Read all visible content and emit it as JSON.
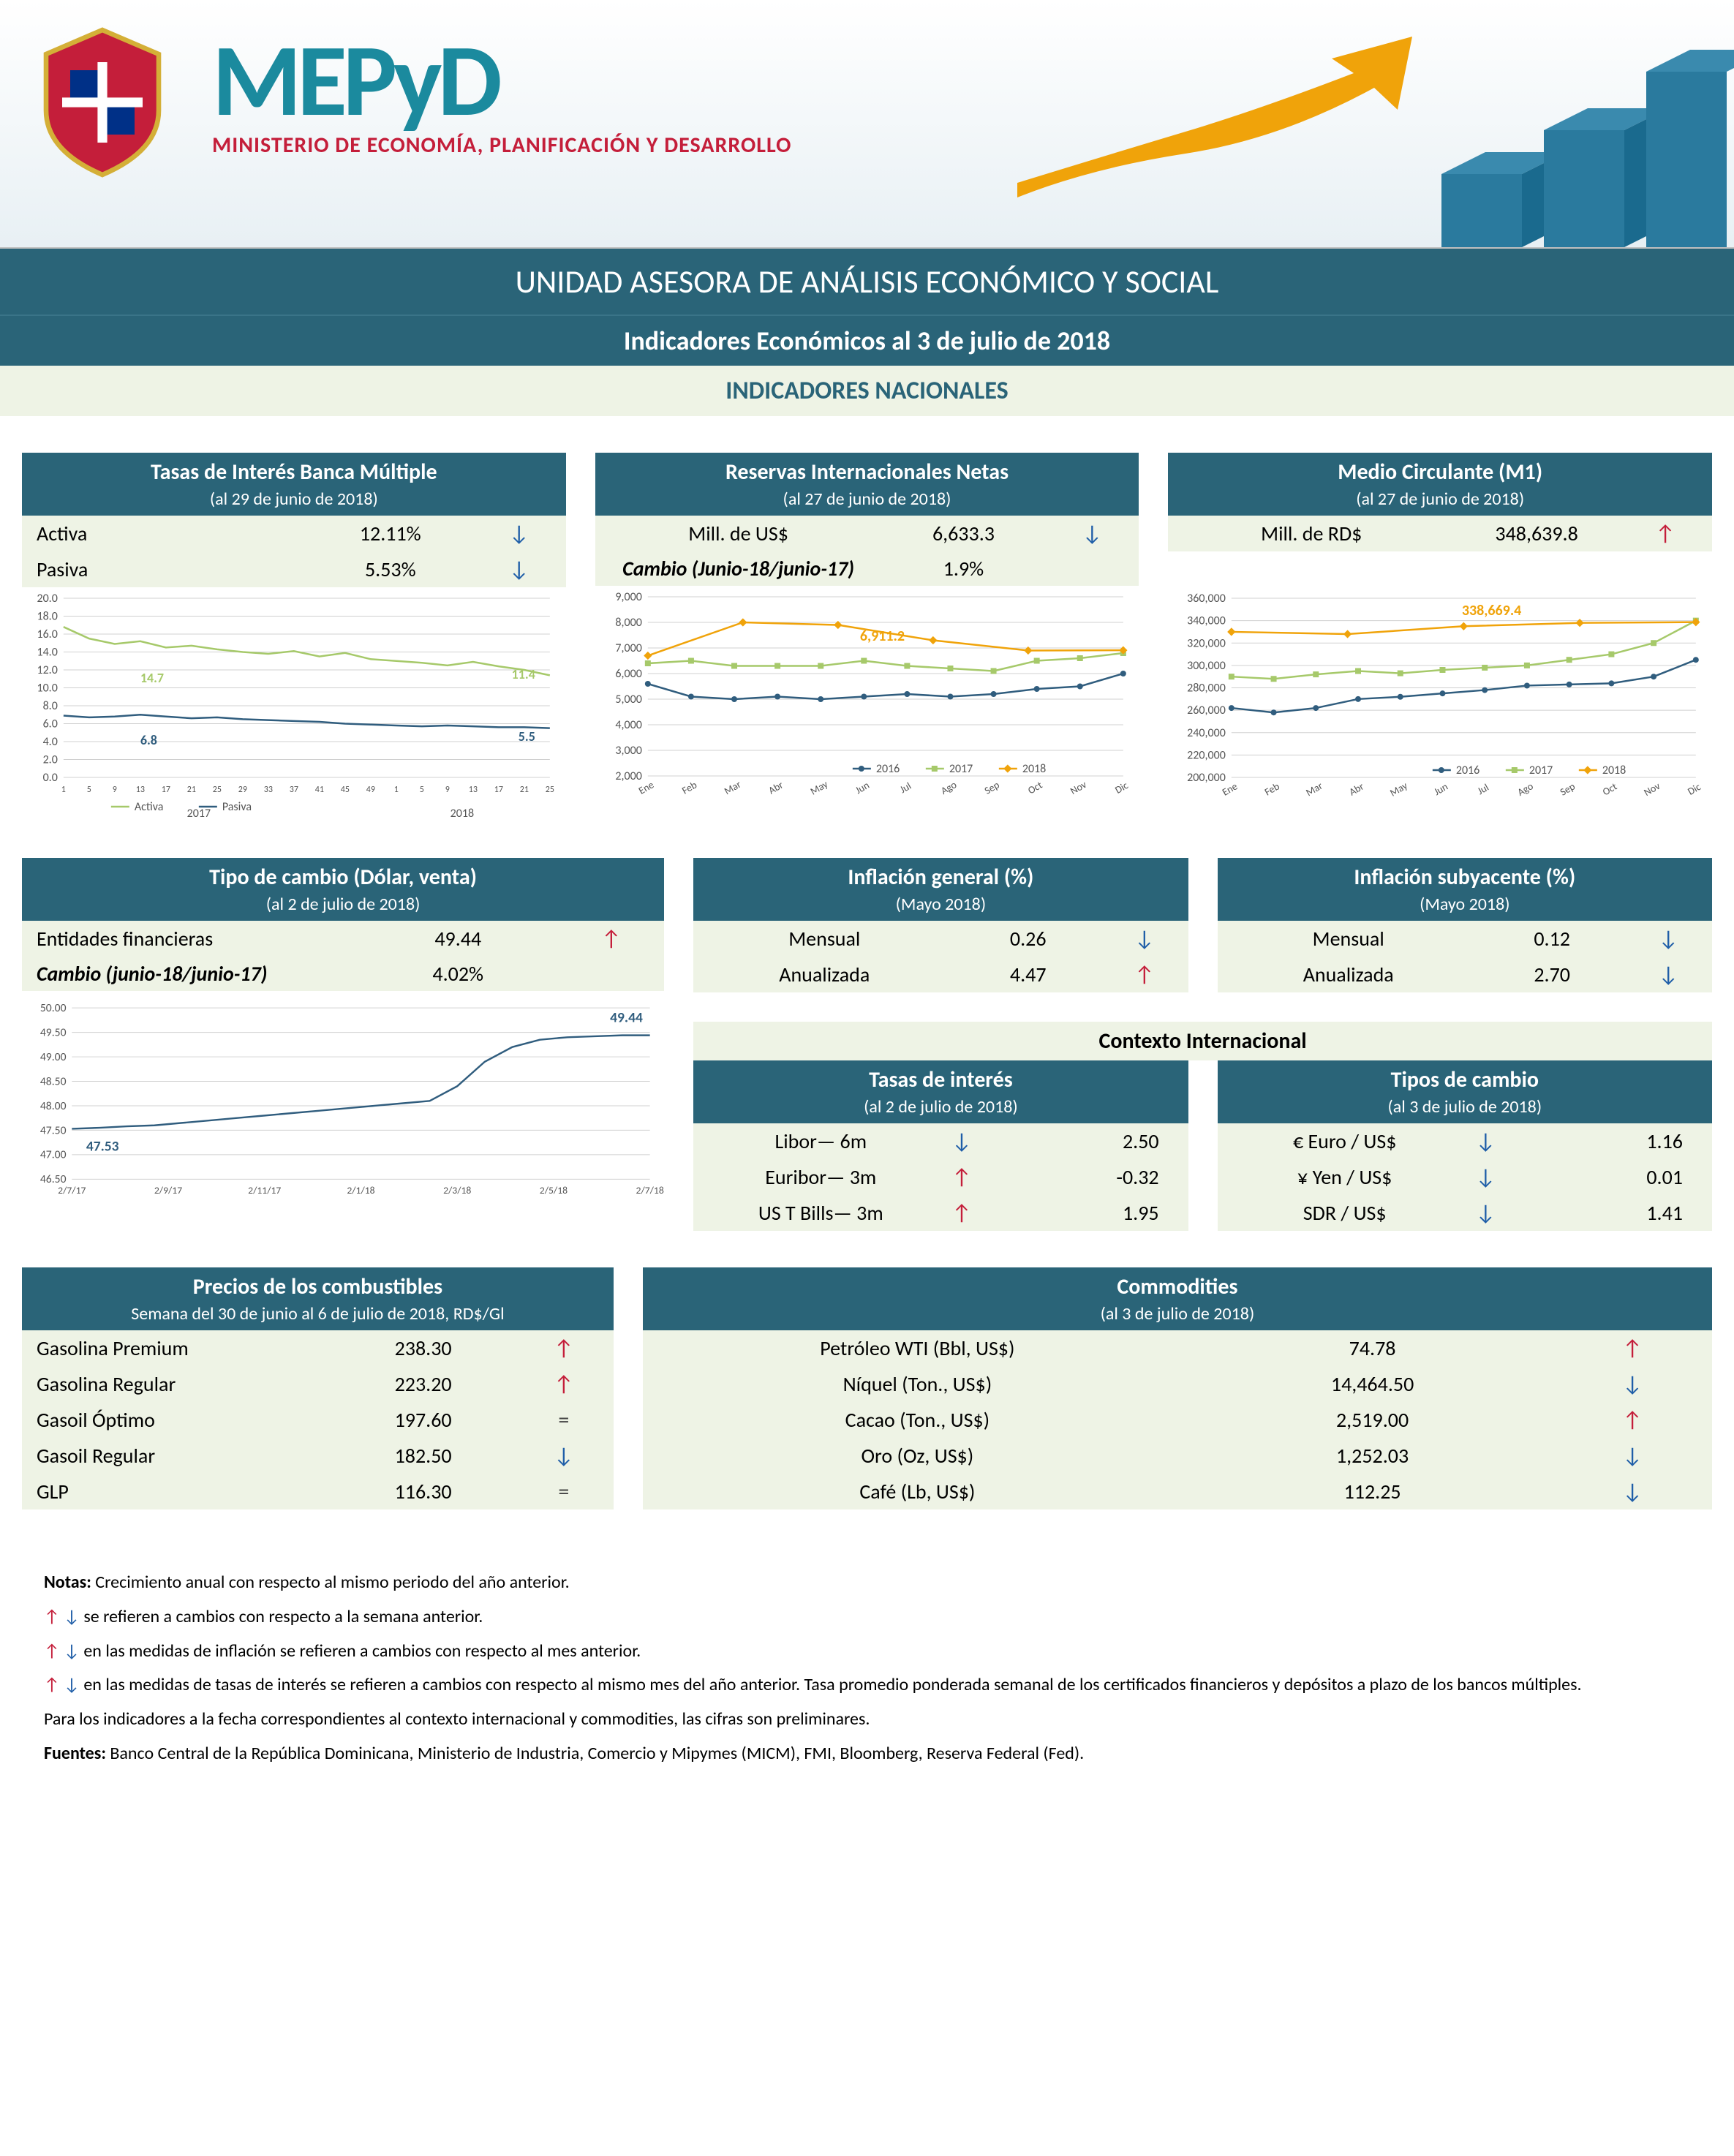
{
  "header": {
    "acronym": "MEPyD",
    "ministry": "MINISTERIO DE ECONOMÍA, PLANIFICACIÓN Y DESARROLLO",
    "title": "UNIDAD ASESORA DE ANÁLISIS ECONÓMICO Y SOCIAL",
    "subtitle": "Indicadores Económicos al  3 de julio de 2018",
    "section": "INDICADORES NACIONALES"
  },
  "colors": {
    "teal": "#2a6478",
    "cream": "#eef3e5",
    "up": "#c41e3a",
    "down": "#1f5ea8",
    "series_2016": "#305d7e",
    "series_2017": "#a6c96a",
    "series_2018": "#f0a30a",
    "activa": "#a6c96a",
    "pasiva": "#305d7e",
    "fx_line": "#305d7e",
    "grid": "#d0d0d0"
  },
  "tasas_interes": {
    "title": "Tasas de Interés Banca Múltiple",
    "date": "(al 29 de junio de 2018)",
    "rows": [
      {
        "label": "Activa",
        "value": "12.11%",
        "arrow": "down"
      },
      {
        "label": "Pasiva",
        "value": "5.53%",
        "arrow": "down"
      }
    ],
    "chart": {
      "ylim": [
        0,
        20
      ],
      "ytick_step": 2,
      "x_years": [
        "2017",
        "2018"
      ],
      "x_ticks": [
        "1",
        "5",
        "9",
        "13",
        "17",
        "21",
        "25",
        "29",
        "33",
        "37",
        "41",
        "45",
        "49",
        "1",
        "5",
        "9",
        "13",
        "17",
        "21",
        "25"
      ],
      "legend": [
        "Activa",
        "Pasiva"
      ],
      "activa_last_label": "11.4",
      "activa_mid_label": "14.7",
      "pasiva_last_label": "5.5",
      "pasiva_mid_label": "6.8",
      "activa": [
        16.8,
        15.5,
        14.9,
        15.2,
        14.5,
        14.7,
        14.3,
        14.0,
        13.8,
        14.1,
        13.5,
        13.9,
        13.2,
        13.0,
        12.8,
        12.5,
        12.9,
        12.4,
        12.0,
        11.4
      ],
      "pasiva": [
        6.9,
        6.7,
        6.8,
        7.0,
        6.8,
        6.6,
        6.7,
        6.5,
        6.4,
        6.3,
        6.2,
        6.0,
        5.9,
        5.8,
        5.7,
        5.8,
        5.7,
        5.6,
        5.6,
        5.5
      ]
    }
  },
  "reservas": {
    "title": "Reservas Internacionales Netas",
    "date": "(al 27 de junio de 2018)",
    "rows": [
      {
        "label": "Mill. de US$",
        "value": "6,633.3",
        "arrow": "down"
      },
      {
        "label": "Cambio (Junio-18/junio-17)",
        "value": "1.9%",
        "arrow": "",
        "italic": true
      }
    ],
    "chart": {
      "ylim": [
        2000,
        9000
      ],
      "ytick_step": 1000,
      "months": [
        "Ene",
        "Feb",
        "Mar",
        "Abr",
        "May",
        "Jun",
        "Jul",
        "Ago",
        "Sep",
        "Oct",
        "Nov",
        "Dic"
      ],
      "legend": [
        "2016",
        "2017",
        "2018"
      ],
      "label_2018": "6,911.2",
      "s2016": [
        5600,
        5100,
        5000,
        5100,
        5000,
        5100,
        5200,
        5100,
        5200,
        5400,
        5500,
        6000
      ],
      "s2017": [
        6400,
        6500,
        6300,
        6300,
        6300,
        6500,
        6300,
        6200,
        6100,
        6500,
        6600,
        6800
      ],
      "s2018": [
        6700,
        8000,
        7900,
        7300,
        6900,
        6911
      ]
    }
  },
  "m1": {
    "title": "Medio Circulante (M1)",
    "date": "(al 27 de junio de 2018)",
    "rows": [
      {
        "label": "Mill. de RD$",
        "value": "348,639.8",
        "arrow": "up"
      }
    ],
    "chart": {
      "ylim": [
        200000,
        360000
      ],
      "ytick_step": 20000,
      "months": [
        "Ene",
        "Feb",
        "Mar",
        "Abr",
        "May",
        "Jun",
        "Jul",
        "Ago",
        "Sep",
        "Oct",
        "Nov",
        "Dic"
      ],
      "legend": [
        "2016",
        "2017",
        "2018"
      ],
      "label_2018": "338,669.4",
      "s2016": [
        262000,
        258000,
        262000,
        270000,
        272000,
        275000,
        278000,
        282000,
        283000,
        284000,
        290000,
        305000
      ],
      "s2017": [
        290000,
        288000,
        292000,
        295000,
        293000,
        296000,
        298000,
        300000,
        305000,
        310000,
        320000,
        340000
      ],
      "s2018": [
        330000,
        328000,
        335000,
        338000,
        338669
      ]
    }
  },
  "tipo_cambio": {
    "title": "Tipo de cambio (Dólar, venta)",
    "date": "(al 2 de julio de 2018)",
    "rows": [
      {
        "label": "Entidades financieras",
        "value": "49.44",
        "arrow": "up"
      },
      {
        "label": "Cambio (junio-18/junio-17)",
        "value": "4.02%",
        "arrow": "",
        "italic": true
      }
    ],
    "chart": {
      "ylim": [
        46.5,
        50.0
      ],
      "ytick_step": 0.5,
      "x_ticks": [
        "2/7/17",
        "2/9/17",
        "2/11/17",
        "2/1/18",
        "2/3/18",
        "2/5/18",
        "2/7/18"
      ],
      "start_label": "47.53",
      "end_label": "49.44",
      "series": [
        47.53,
        47.55,
        47.58,
        47.6,
        47.65,
        47.7,
        47.75,
        47.8,
        47.85,
        47.9,
        47.95,
        48.0,
        48.05,
        48.1,
        48.4,
        48.9,
        49.2,
        49.35,
        49.4,
        49.42,
        49.44,
        49.44
      ]
    }
  },
  "inflacion_general": {
    "title": "Inflación general (%)",
    "date": "(Mayo 2018)",
    "rows": [
      {
        "label": "Mensual",
        "value": "0.26",
        "arrow": "down"
      },
      {
        "label": "Anualizada",
        "value": "4.47",
        "arrow": "up"
      }
    ]
  },
  "inflacion_subyacente": {
    "title": "Inflación subyacente (%)",
    "date": "(Mayo 2018)",
    "rows": [
      {
        "label": "Mensual",
        "value": "0.12",
        "arrow": "down"
      },
      {
        "label": "Anualizada",
        "value": "2.70",
        "arrow": "down"
      }
    ]
  },
  "contexto": {
    "title": "Contexto Internacional",
    "tasas": {
      "title": "Tasas de interés",
      "date": "(al 2 de julio de 2018)",
      "rows": [
        {
          "label": "Libor— 6m",
          "arrow": "down",
          "value": "2.50"
        },
        {
          "label": "Euribor— 3m",
          "arrow": "up",
          "value": "-0.32"
        },
        {
          "label": "US T Bills— 3m",
          "arrow": "up",
          "value": "1.95"
        }
      ]
    },
    "fx": {
      "title": "Tipos de cambio",
      "date": "(al 3 de julio de 2018)",
      "rows": [
        {
          "label": "€ Euro / US$",
          "arrow": "down",
          "value": "1.16"
        },
        {
          "label": "¥ Yen / US$",
          "arrow": "down",
          "value": "0.01"
        },
        {
          "label": "SDR / US$",
          "arrow": "down",
          "value": "1.41"
        }
      ]
    }
  },
  "combustibles": {
    "title": "Precios de los combustibles",
    "date": "Semana del 30 de junio al 6 de julio de 2018, RD$/Gl",
    "rows": [
      {
        "label": "Gasolina Premium",
        "value": "238.30",
        "arrow": "up"
      },
      {
        "label": "Gasolina Regular",
        "value": "223.20",
        "arrow": "up"
      },
      {
        "label": "Gasoil Óptimo",
        "value": "197.60",
        "arrow": "eq"
      },
      {
        "label": "Gasoil Regular",
        "value": "182.50",
        "arrow": "down"
      },
      {
        "label": "GLP",
        "value": "116.30",
        "arrow": "eq"
      }
    ]
  },
  "commodities": {
    "title": "Commodities",
    "date": "(al 3 de julio de 2018)",
    "rows": [
      {
        "label": "Petróleo WTI (Bbl, US$)",
        "value": "74.78",
        "arrow": "up"
      },
      {
        "label": "Níquel (Ton., US$)",
        "value": "14,464.50",
        "arrow": "down"
      },
      {
        "label": "Cacao (Ton., US$)",
        "value": "2,519.00",
        "arrow": "up"
      },
      {
        "label": "Oro (Oz, US$)",
        "value": "1,252.03",
        "arrow": "down"
      },
      {
        "label": "Café (Lb, US$)",
        "value": "112.25",
        "arrow": "down"
      }
    ]
  },
  "notes": {
    "heading": "Notas:",
    "n1": "Crecimiento anual con respecto al mismo periodo del año anterior.",
    "n2": "se refieren a cambios con respecto a la semana anterior.",
    "n3": "en las medidas de inflación se refieren a cambios con respecto al mes anterior.",
    "n4": "en las medidas de tasas de interés se refieren a cambios con respecto al mismo mes del año anterior. Tasa promedio ponderada semanal de los certificados financieros y depósitos a plazo de los bancos múltiples.",
    "n5": "Para los indicadores a la fecha correspondientes al contexto internacional y commodities, las cifras son preliminares.",
    "fuentes_label": "Fuentes:",
    "fuentes": "Banco Central de la República Dominicana, Ministerio de Industria, Comercio y Mipymes (MICM), FMI, Bloomberg, Reserva Federal (Fed)."
  }
}
